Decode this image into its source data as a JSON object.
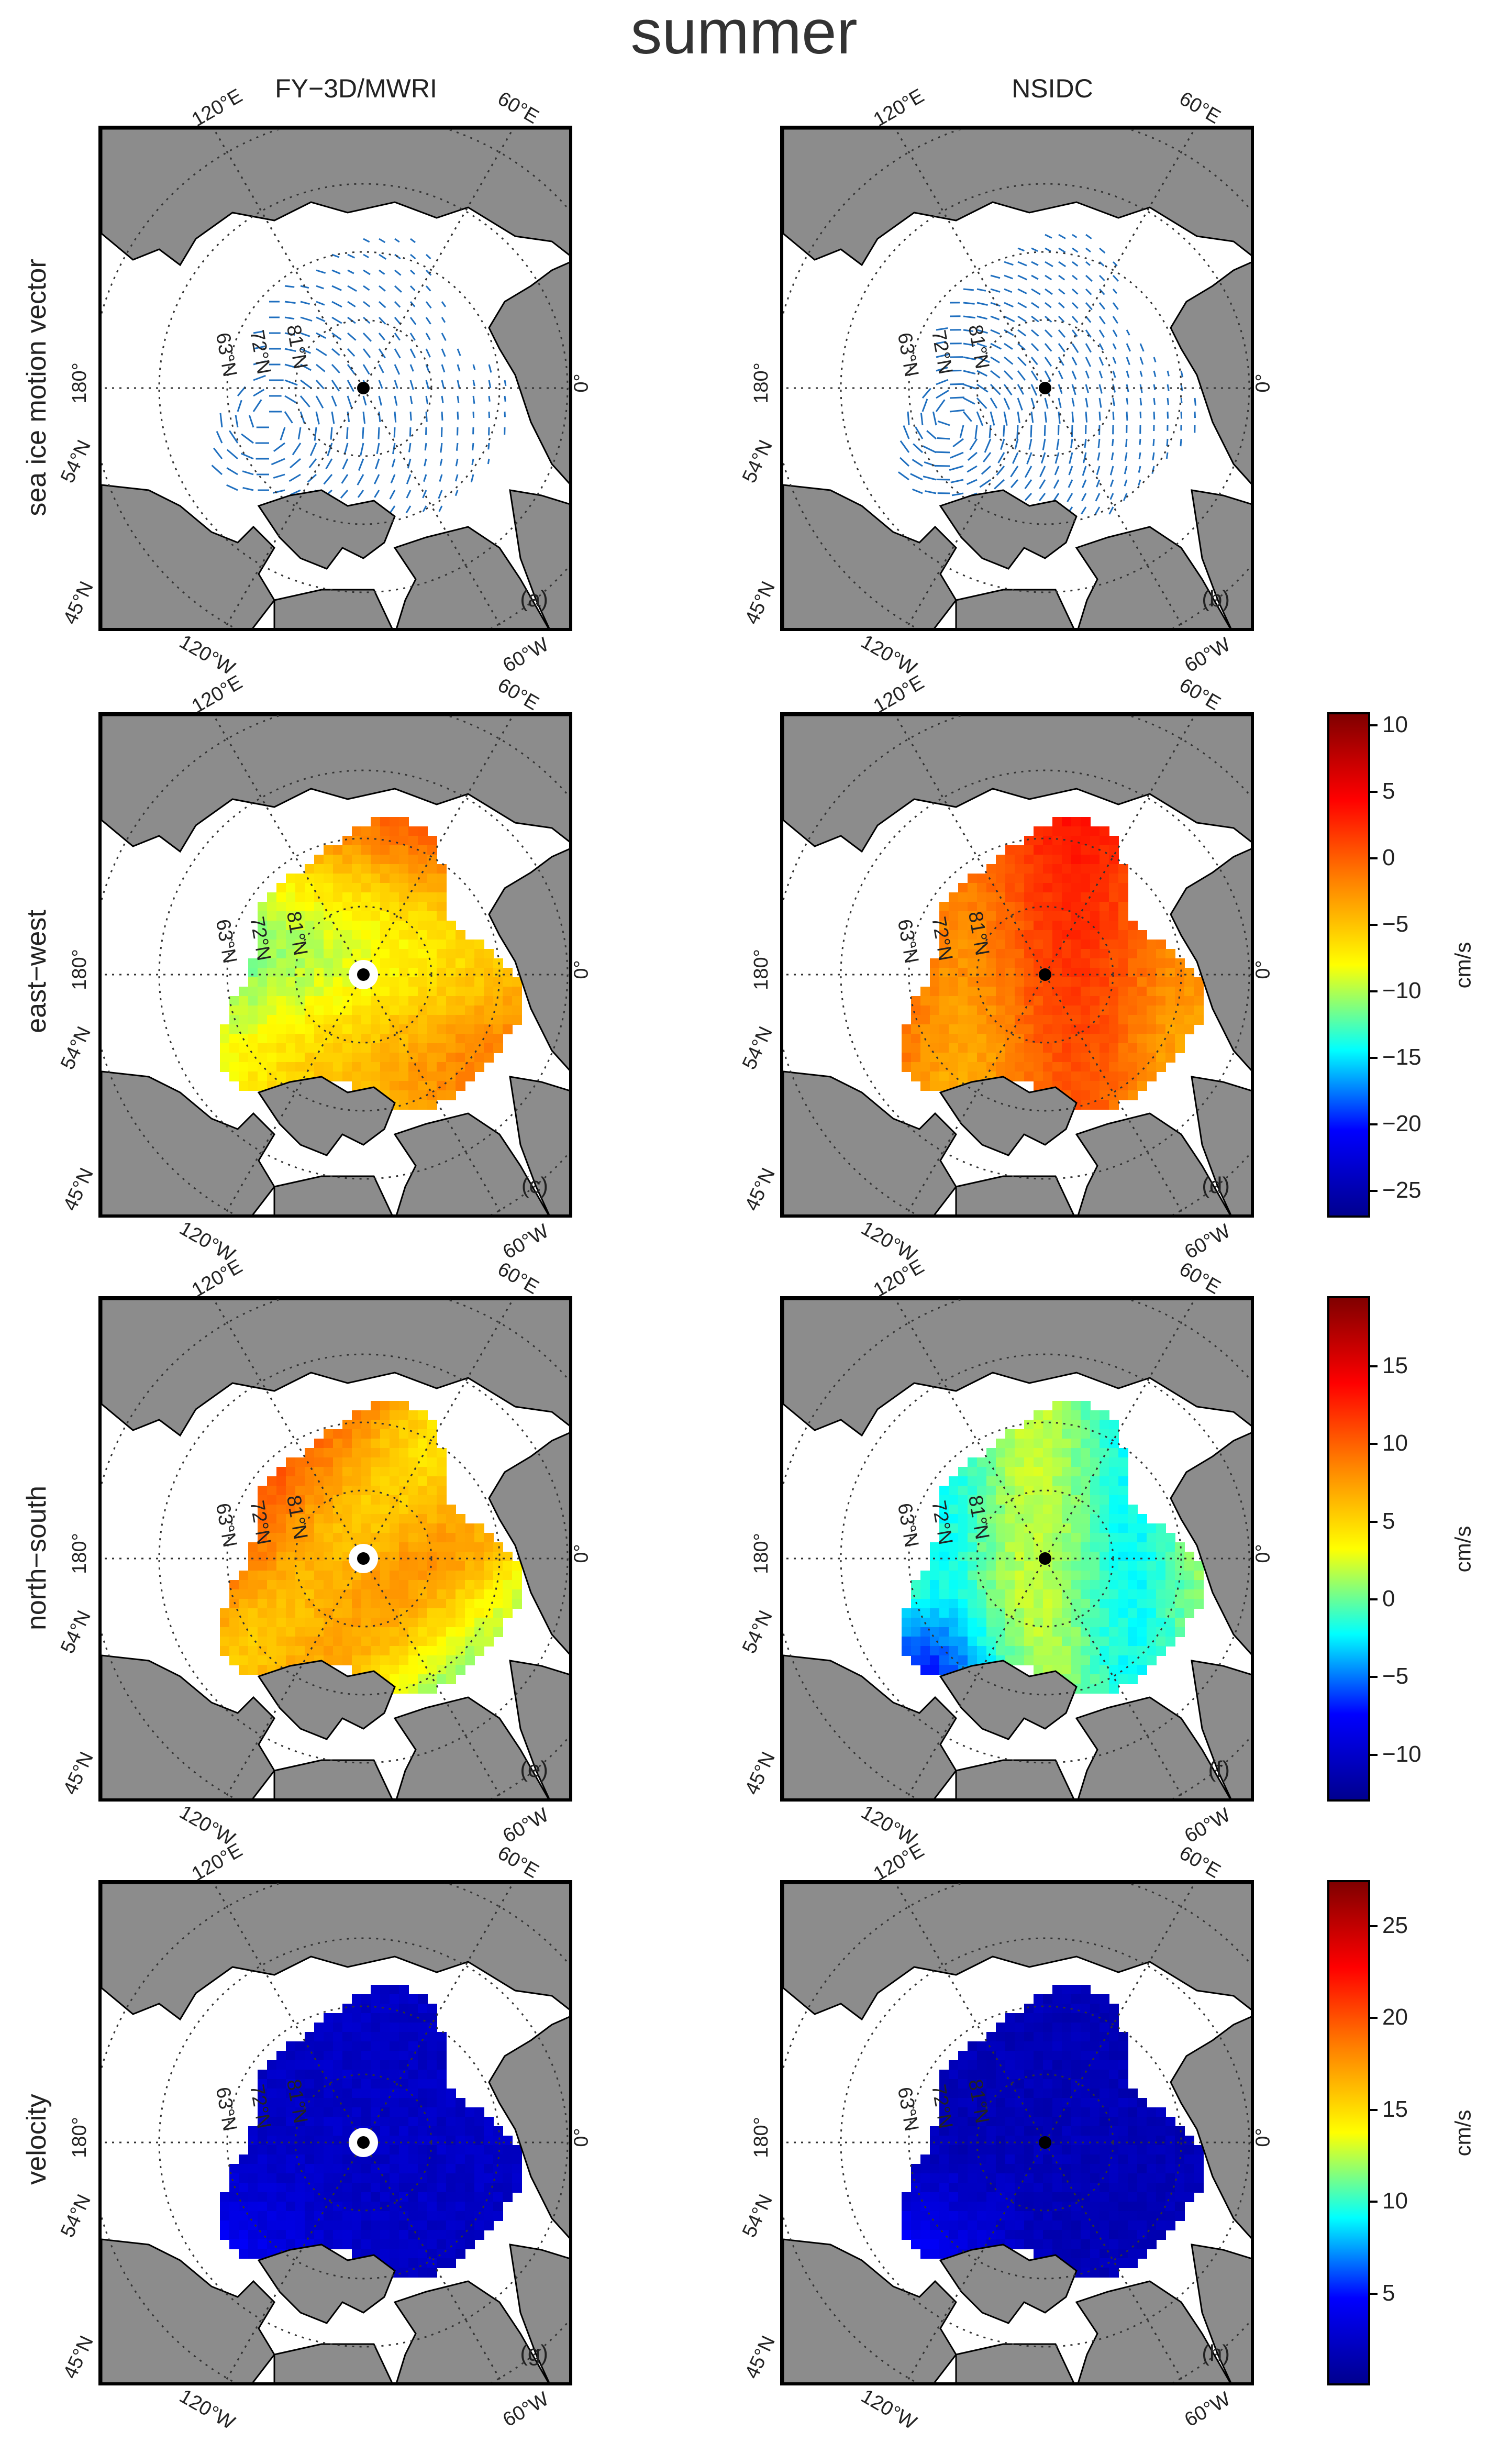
{
  "title": "summer",
  "columns": [
    "FY−3D/MWRI",
    "NSIDC"
  ],
  "rows": [
    "sea ice motion vector",
    "east−west",
    "north−south",
    "velocity"
  ],
  "graticule": {
    "top_left": "120°E",
    "top_right": "60°E",
    "bottom_left": "120°W",
    "bottom_right": "60°W",
    "left": "180°",
    "right": "0°",
    "lat_a": "54°N",
    "lat_b": "45°N",
    "lat_c": "63°N",
    "lat_d": "72°N",
    "lat_e": "81°N"
  },
  "panels": [
    {
      "label": "(a)",
      "row": 0,
      "col": 0,
      "field": "vectors-fy"
    },
    {
      "label": "(b)",
      "row": 0,
      "col": 1,
      "field": "vectors-nsidc"
    },
    {
      "label": "(c)",
      "row": 1,
      "col": 0,
      "field": "ew-fy"
    },
    {
      "label": "(d)",
      "row": 1,
      "col": 1,
      "field": "ew-nsidc"
    },
    {
      "label": "(e)",
      "row": 2,
      "col": 0,
      "field": "ns-fy"
    },
    {
      "label": "(f)",
      "row": 2,
      "col": 1,
      "field": "ns-nsidc"
    },
    {
      "label": "(g)",
      "row": 3,
      "col": 0,
      "field": "vel-fy"
    },
    {
      "label": "(h)",
      "row": 3,
      "col": 1,
      "field": "vel-nsidc"
    }
  ],
  "colorbars": [
    {
      "row": 1,
      "unit": "cm/s",
      "min": -27,
      "max": 11,
      "ticks": [
        "10",
        "5",
        "0",
        "−5",
        "−10",
        "−15",
        "−20",
        "−25"
      ],
      "tick_values": [
        10,
        5,
        0,
        -5,
        -10,
        -15,
        -20,
        -25
      ]
    },
    {
      "row": 2,
      "unit": "cm/s",
      "min": -13,
      "max": 19.5,
      "ticks": [
        "15",
        "10",
        "5",
        "0",
        "−5",
        "−10"
      ],
      "tick_values": [
        15,
        10,
        5,
        0,
        -5,
        -10
      ]
    },
    {
      "row": 3,
      "unit": "cm/s",
      "min": 0,
      "max": 27.5,
      "ticks": [
        "25",
        "20",
        "15",
        "10",
        "5"
      ],
      "tick_values": [
        25,
        20,
        15,
        10,
        5
      ]
    }
  ],
  "colors": {
    "land": "#8c8c8c",
    "vector": "#1f6fbf",
    "jet": [
      "#00008f",
      "#0000ff",
      "#00ffff",
      "#ffff00",
      "#ff8000",
      "#ff0000",
      "#800000"
    ]
  }
}
